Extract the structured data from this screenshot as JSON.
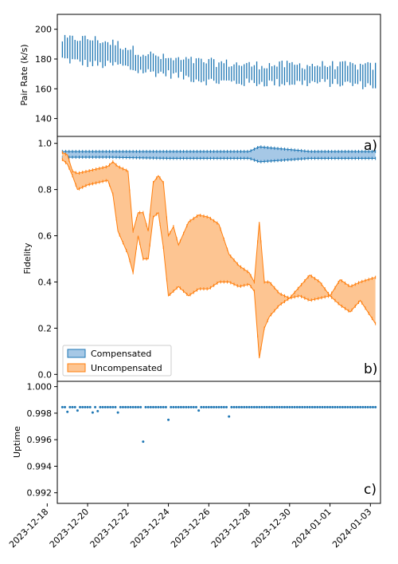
{
  "chart_data": [
    {
      "type": "line",
      "panel_tag": "a)",
      "ylabel": "Pair Rate (k/s)",
      "xlabel": "",
      "ylim": [
        128,
        210
      ],
      "yticks": [
        140,
        160,
        180,
        200
      ],
      "grid": false,
      "x_start": "2023-12-18T18:00",
      "x_end": "2024-01-03T06:00",
      "series": [
        {
          "style": "vertical-range",
          "color": "#1f77b4",
          "anchors_x": [
            "2023-12-18T18:00",
            "2023-12-19T12:00",
            "2023-12-20T12:00",
            "2023-12-21T12:00",
            "2023-12-22T12:00",
            "2023-12-24T00:00",
            "2023-12-26T00:00",
            "2023-12-28T00:00",
            "2023-12-30T00:00",
            "2024-01-01T00:00",
            "2024-01-03T06:00"
          ],
          "anchors_low": [
            180,
            178,
            176,
            176,
            172,
            170,
            165,
            164,
            164,
            164,
            162
          ],
          "anchors_high": [
            193,
            194,
            193,
            190,
            185,
            180,
            178,
            176,
            176,
            176,
            175
          ]
        }
      ]
    },
    {
      "type": "area",
      "panel_tag": "b)",
      "ylabel": "Fidelity",
      "xlabel": "",
      "ylim": [
        -0.03,
        1.03
      ],
      "yticks": [
        0.0,
        0.2,
        0.4,
        0.6,
        0.8,
        1.0
      ],
      "grid": false,
      "legend_position": "lower-left",
      "series": [
        {
          "name": "Compensated",
          "color": "#1f77b4",
          "fill": "#a6c8e6",
          "x": [
            "2023-12-18T18:00",
            "2023-12-21T00:00",
            "2023-12-24T00:00",
            "2023-12-28T00:00",
            "2023-12-28T12:00",
            "2023-12-31T00:00",
            "2024-01-03T06:00"
          ],
          "low": [
            0.94,
            0.94,
            0.935,
            0.935,
            0.92,
            0.935,
            0.935
          ],
          "high": [
            0.965,
            0.965,
            0.965,
            0.965,
            0.985,
            0.965,
            0.965
          ]
        },
        {
          "name": "Uncompensated",
          "color": "#ff7f0e",
          "fill": "#fdc592",
          "x": [
            "2023-12-18T18:00",
            "2023-12-19T00:00",
            "2023-12-19T06:00",
            "2023-12-19T12:00",
            "2023-12-20T00:00",
            "2023-12-20T12:00",
            "2023-12-21T00:00",
            "2023-12-21T06:00",
            "2023-12-21T12:00",
            "2023-12-22T00:00",
            "2023-12-22T06:00",
            "2023-12-22T12:00",
            "2023-12-22T18:00",
            "2023-12-23T00:00",
            "2023-12-23T06:00",
            "2023-12-23T12:00",
            "2023-12-23T18:00",
            "2023-12-24T00:00",
            "2023-12-24T06:00",
            "2023-12-24T12:00",
            "2023-12-25T00:00",
            "2023-12-25T12:00",
            "2023-12-26T00:00",
            "2023-12-26T12:00",
            "2023-12-27T00:00",
            "2023-12-27T12:00",
            "2023-12-28T00:00",
            "2023-12-28T06:00",
            "2023-12-28T12:00",
            "2023-12-28T18:00",
            "2023-12-29T00:00",
            "2023-12-29T12:00",
            "2023-12-30T00:00",
            "2023-12-30T12:00",
            "2023-12-31T00:00",
            "2023-12-31T12:00",
            "2024-01-01T00:00",
            "2024-01-01T12:00",
            "2024-01-02T00:00",
            "2024-01-02T12:00",
            "2024-01-03T06:00"
          ],
          "low": [
            0.93,
            0.91,
            0.86,
            0.8,
            0.82,
            0.83,
            0.84,
            0.78,
            0.62,
            0.52,
            0.44,
            0.6,
            0.5,
            0.5,
            0.68,
            0.7,
            0.55,
            0.34,
            0.36,
            0.38,
            0.34,
            0.37,
            0.37,
            0.4,
            0.4,
            0.38,
            0.39,
            0.36,
            0.07,
            0.2,
            0.25,
            0.3,
            0.33,
            0.34,
            0.32,
            0.33,
            0.34,
            0.3,
            0.27,
            0.32,
            0.22
          ],
          "high": [
            0.96,
            0.95,
            0.88,
            0.87,
            0.88,
            0.89,
            0.9,
            0.92,
            0.9,
            0.88,
            0.62,
            0.7,
            0.7,
            0.62,
            0.83,
            0.86,
            0.83,
            0.6,
            0.64,
            0.56,
            0.66,
            0.69,
            0.68,
            0.65,
            0.52,
            0.47,
            0.44,
            0.4,
            0.66,
            0.4,
            0.4,
            0.35,
            0.33,
            0.38,
            0.43,
            0.4,
            0.34,
            0.41,
            0.38,
            0.4,
            0.42
          ]
        }
      ]
    },
    {
      "type": "scatter",
      "panel_tag": "c)",
      "ylabel": "Uptime",
      "xlabel": "",
      "ylim": [
        0.9912,
        1.0004
      ],
      "yticks": [
        0.992,
        0.994,
        0.996,
        0.998,
        1.0
      ],
      "grid": false,
      "xticks": [
        "2023-12-18",
        "2023-12-20",
        "2023-12-22",
        "2023-12-24",
        "2023-12-26",
        "2023-12-28",
        "2023-12-30",
        "2024-01-01",
        "2024-01-03"
      ],
      "series": [
        {
          "color": "#1f77b4",
          "baseline": 0.99845,
          "x_start": "2023-12-18T18:00",
          "x_end": "2024-01-03T06:00",
          "outliers": [
            {
              "x": "2023-12-19T00:00",
              "y": 0.9981
            },
            {
              "x": "2023-12-19T12:00",
              "y": 0.9982
            },
            {
              "x": "2023-12-20T06:00",
              "y": 0.99805
            },
            {
              "x": "2023-12-20T12:00",
              "y": 0.99815
            },
            {
              "x": "2023-12-21T12:00",
              "y": 0.99805
            },
            {
              "x": "2023-12-22T18:00",
              "y": 0.99585
            },
            {
              "x": "2023-12-24T00:00",
              "y": 0.9975
            },
            {
              "x": "2023-12-25T12:00",
              "y": 0.9982
            },
            {
              "x": "2023-12-27T00:00",
              "y": 0.99775
            }
          ]
        }
      ]
    }
  ]
}
